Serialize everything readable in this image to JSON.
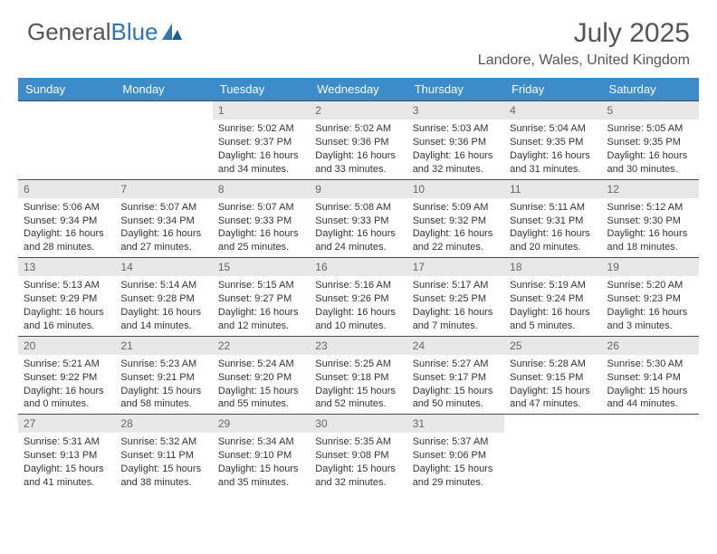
{
  "logo": {
    "text1": "General",
    "text2": "Blue"
  },
  "title": "July 2025",
  "location": "Landore, Wales, United Kingdom",
  "colors": {
    "header_bg": "#3b8cc9",
    "header_text": "#ffffff",
    "day_number_bg": "#e8e8e8",
    "text": "#333333",
    "title": "#555555",
    "logo_accent": "#2e75b6",
    "border": "#4a4a4a"
  },
  "day_names": [
    "Sunday",
    "Monday",
    "Tuesday",
    "Wednesday",
    "Thursday",
    "Friday",
    "Saturday"
  ],
  "weeks": [
    [
      {
        "day": "",
        "sunrise": "",
        "sunset": "",
        "daylight": ""
      },
      {
        "day": "",
        "sunrise": "",
        "sunset": "",
        "daylight": ""
      },
      {
        "day": "1",
        "sunrise": "Sunrise: 5:02 AM",
        "sunset": "Sunset: 9:37 PM",
        "daylight": "Daylight: 16 hours and 34 minutes."
      },
      {
        "day": "2",
        "sunrise": "Sunrise: 5:02 AM",
        "sunset": "Sunset: 9:36 PM",
        "daylight": "Daylight: 16 hours and 33 minutes."
      },
      {
        "day": "3",
        "sunrise": "Sunrise: 5:03 AM",
        "sunset": "Sunset: 9:36 PM",
        "daylight": "Daylight: 16 hours and 32 minutes."
      },
      {
        "day": "4",
        "sunrise": "Sunrise: 5:04 AM",
        "sunset": "Sunset: 9:35 PM",
        "daylight": "Daylight: 16 hours and 31 minutes."
      },
      {
        "day": "5",
        "sunrise": "Sunrise: 5:05 AM",
        "sunset": "Sunset: 9:35 PM",
        "daylight": "Daylight: 16 hours and 30 minutes."
      }
    ],
    [
      {
        "day": "6",
        "sunrise": "Sunrise: 5:06 AM",
        "sunset": "Sunset: 9:34 PM",
        "daylight": "Daylight: 16 hours and 28 minutes."
      },
      {
        "day": "7",
        "sunrise": "Sunrise: 5:07 AM",
        "sunset": "Sunset: 9:34 PM",
        "daylight": "Daylight: 16 hours and 27 minutes."
      },
      {
        "day": "8",
        "sunrise": "Sunrise: 5:07 AM",
        "sunset": "Sunset: 9:33 PM",
        "daylight": "Daylight: 16 hours and 25 minutes."
      },
      {
        "day": "9",
        "sunrise": "Sunrise: 5:08 AM",
        "sunset": "Sunset: 9:33 PM",
        "daylight": "Daylight: 16 hours and 24 minutes."
      },
      {
        "day": "10",
        "sunrise": "Sunrise: 5:09 AM",
        "sunset": "Sunset: 9:32 PM",
        "daylight": "Daylight: 16 hours and 22 minutes."
      },
      {
        "day": "11",
        "sunrise": "Sunrise: 5:11 AM",
        "sunset": "Sunset: 9:31 PM",
        "daylight": "Daylight: 16 hours and 20 minutes."
      },
      {
        "day": "12",
        "sunrise": "Sunrise: 5:12 AM",
        "sunset": "Sunset: 9:30 PM",
        "daylight": "Daylight: 16 hours and 18 minutes."
      }
    ],
    [
      {
        "day": "13",
        "sunrise": "Sunrise: 5:13 AM",
        "sunset": "Sunset: 9:29 PM",
        "daylight": "Daylight: 16 hours and 16 minutes."
      },
      {
        "day": "14",
        "sunrise": "Sunrise: 5:14 AM",
        "sunset": "Sunset: 9:28 PM",
        "daylight": "Daylight: 16 hours and 14 minutes."
      },
      {
        "day": "15",
        "sunrise": "Sunrise: 5:15 AM",
        "sunset": "Sunset: 9:27 PM",
        "daylight": "Daylight: 16 hours and 12 minutes."
      },
      {
        "day": "16",
        "sunrise": "Sunrise: 5:16 AM",
        "sunset": "Sunset: 9:26 PM",
        "daylight": "Daylight: 16 hours and 10 minutes."
      },
      {
        "day": "17",
        "sunrise": "Sunrise: 5:17 AM",
        "sunset": "Sunset: 9:25 PM",
        "daylight": "Daylight: 16 hours and 7 minutes."
      },
      {
        "day": "18",
        "sunrise": "Sunrise: 5:19 AM",
        "sunset": "Sunset: 9:24 PM",
        "daylight": "Daylight: 16 hours and 5 minutes."
      },
      {
        "day": "19",
        "sunrise": "Sunrise: 5:20 AM",
        "sunset": "Sunset: 9:23 PM",
        "daylight": "Daylight: 16 hours and 3 minutes."
      }
    ],
    [
      {
        "day": "20",
        "sunrise": "Sunrise: 5:21 AM",
        "sunset": "Sunset: 9:22 PM",
        "daylight": "Daylight: 16 hours and 0 minutes."
      },
      {
        "day": "21",
        "sunrise": "Sunrise: 5:23 AM",
        "sunset": "Sunset: 9:21 PM",
        "daylight": "Daylight: 15 hours and 58 minutes."
      },
      {
        "day": "22",
        "sunrise": "Sunrise: 5:24 AM",
        "sunset": "Sunset: 9:20 PM",
        "daylight": "Daylight: 15 hours and 55 minutes."
      },
      {
        "day": "23",
        "sunrise": "Sunrise: 5:25 AM",
        "sunset": "Sunset: 9:18 PM",
        "daylight": "Daylight: 15 hours and 52 minutes."
      },
      {
        "day": "24",
        "sunrise": "Sunrise: 5:27 AM",
        "sunset": "Sunset: 9:17 PM",
        "daylight": "Daylight: 15 hours and 50 minutes."
      },
      {
        "day": "25",
        "sunrise": "Sunrise: 5:28 AM",
        "sunset": "Sunset: 9:15 PM",
        "daylight": "Daylight: 15 hours and 47 minutes."
      },
      {
        "day": "26",
        "sunrise": "Sunrise: 5:30 AM",
        "sunset": "Sunset: 9:14 PM",
        "daylight": "Daylight: 15 hours and 44 minutes."
      }
    ],
    [
      {
        "day": "27",
        "sunrise": "Sunrise: 5:31 AM",
        "sunset": "Sunset: 9:13 PM",
        "daylight": "Daylight: 15 hours and 41 minutes."
      },
      {
        "day": "28",
        "sunrise": "Sunrise: 5:32 AM",
        "sunset": "Sunset: 9:11 PM",
        "daylight": "Daylight: 15 hours and 38 minutes."
      },
      {
        "day": "29",
        "sunrise": "Sunrise: 5:34 AM",
        "sunset": "Sunset: 9:10 PM",
        "daylight": "Daylight: 15 hours and 35 minutes."
      },
      {
        "day": "30",
        "sunrise": "Sunrise: 5:35 AM",
        "sunset": "Sunset: 9:08 PM",
        "daylight": "Daylight: 15 hours and 32 minutes."
      },
      {
        "day": "31",
        "sunrise": "Sunrise: 5:37 AM",
        "sunset": "Sunset: 9:06 PM",
        "daylight": "Daylight: 15 hours and 29 minutes."
      },
      {
        "day": "",
        "sunrise": "",
        "sunset": "",
        "daylight": ""
      },
      {
        "day": "",
        "sunrise": "",
        "sunset": "",
        "daylight": ""
      }
    ]
  ]
}
